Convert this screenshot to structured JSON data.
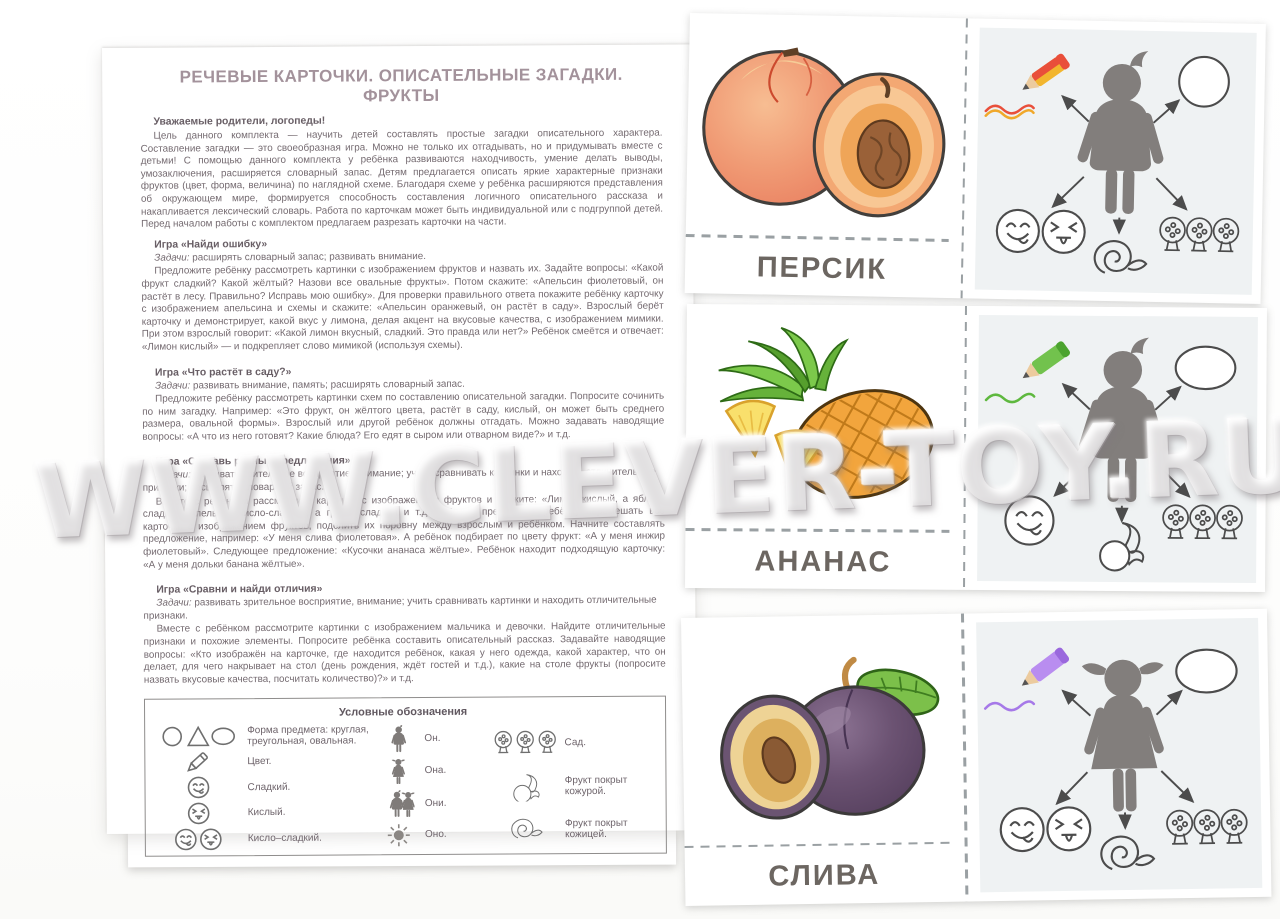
{
  "page": {
    "watermark": "WWW.CLEVER-TOY.RU"
  },
  "colors": {
    "title": "#a3929b",
    "body_text": "#746a70",
    "heading": "#685e65",
    "card_label": "#6c6661",
    "silhouette": "#827e7c",
    "outline": "#4c4c4c",
    "schema_panel": "#eff2f3",
    "dash": "#9aa0a3"
  },
  "sheet": {
    "title": "РЕЧЕВЫЕ КАРТОЧКИ. ОПИСАТЕЛЬНЫЕ ЗАГАДКИ. ФРУКТЫ",
    "greeting": "Уважаемые родители, логопеды!",
    "intro": "Цель данного комплекта — научить детей составлять простые загадки описательного характера. Составление загадки — это своеобразная игра. Можно не только их отгадывать, но и придумывать вместе с детьми! С помощью данного комплекта у ребёнка развиваются находчивость, умение делать выводы, умозаключения, расширяется словарный запас. Детям предлагается описать яркие характерные признаки фруктов (цвет, форма, величина) по наглядной схеме. Благодаря схеме у ребёнка расширяются представления об окружающем мире, формируется способность составления логичного описательного рассказа и накапливается лексический словарь. Работа по карточкам может быть индивидуальной или с подгруппой детей. Перед началом работы с комплектом предлагаем разрезать карточки на части.",
    "games": [
      {
        "heading": "Игра «Найди ошибку»",
        "tasks_label": "Задачи:",
        "tasks_text": " расширять словарный запас; развивать внимание.",
        "body": "Предложите ребёнку рассмотреть картинки с изображением фруктов и назвать их. Задайте вопросы: «Какой фрукт сладкий? Какой жёлтый? Назови все овальные фрукты». Потом скажите: «Апельсин фиолетовый, он растёт в лесу. Правильно? Исправь мою ошибку». Для проверки правильного ответа покажите ребёнку карточку с изображением апельсина и схемы и скажите: «Апельсин оранжевый, он растёт в саду». Взрослый берёт карточку и демонстрирует, какой вкус у лимона, делая акцент на вкусовые качества, с изображением мимики. При этом взрослый говорит: «Какой лимон вкусный, сладкий. Это правда или нет?» Ребёнок смеётся и отвечает: «Лимон кислый» — и подкрепляет слово мимикой (используя схемы)."
      },
      {
        "heading": "Игра «Что растёт в саду?»",
        "tasks_label": "Задачи:",
        "tasks_text": " развивать внимание, память; расширять словарный запас.",
        "body": "Предложите ребёнку рассмотреть картинки схем по составлению описательной загадки. Попросите сочинить по ним загадку. Например: «Это фрукт, он жёлтого цвета, растёт в саду, кислый, он может быть среднего размера, овальной формы». Взрослый или другой ребёнок должны отгадать. Можно задавать наводящие вопросы: «А что из него готовят? Какие блюда? Его едят в сыром или отварном виде?» и т.д."
      },
      {
        "heading": "Игра «Составь разные предложения»",
        "tasks_label": "Задачи:",
        "tasks_text": " развивать зрительное восприятие, внимание; учить сравнивать картинки и находить отличительные признаки; расширять словарный запас.",
        "body": "Вместе с ребёнком рассмотрите картинки с изображением фруктов и скажите: «Лимон кислый, а яблоко сладкое. Апельсин кисло-сладкий, а груша сладкая и т.д.». Можно предложить ребёнку перемешать все карточки с изображением фруктов, поделить их поровну между взрослым и ребёнком. Начните составлять предложение, например: «У меня слива фиолетовая». А ребёнок подбирает по цвету фрукт: «А у меня инжир фиолетовый». Следующее предложение: «Кусочки ананаса жёлтые». Ребёнок находит подходящую карточку: «А у меня дольки банана жёлтые»."
      },
      {
        "heading": "Игра «Сравни и найди отличия»",
        "tasks_label": "Задачи:",
        "tasks_text": " развивать зрительное восприятие, внимание; учить сравнивать картинки и находить отличительные признаки.",
        "body": "Вместе с ребёнком рассмотрите картинки с изображением мальчика и девочки. Найдите отличительные признаки и похожие элементы. Попросите ребёнка составить описательный рассказ. Задавайте наводящие вопросы: «Кто изображён на карточке, где находится ребёнок, какая у него одежда, какой характер, что он делает, для чего накрывает на стол (день рождения, ждёт гостей и т.д.), какие на столе фрукты (попросите назвать вкусовые качества, посчитать количество)?» и т.д."
      }
    ],
    "legend": {
      "title": "Условные обозначения",
      "col1": [
        {
          "icon": "shapes",
          "label": "Форма предмета: круглая, треугольная, овальная."
        },
        {
          "icon": "pencil",
          "label": "Цвет."
        },
        {
          "icon": "sweet-face",
          "label": "Сладкий."
        },
        {
          "icon": "sour-face",
          "label": "Кислый."
        },
        {
          "icon": "sweet-sour",
          "label": "Кисло–сладкий."
        }
      ],
      "col2": [
        {
          "icon": "boy",
          "label": "Он."
        },
        {
          "icon": "girl",
          "label": "Она."
        },
        {
          "icon": "boy-girl",
          "label": "Они."
        },
        {
          "icon": "sun",
          "label": "Оно."
        }
      ],
      "col3": [
        {
          "icon": "trees",
          "label": "Сад."
        },
        {
          "icon": "peel",
          "label": "Фрукт покрыт кожурой."
        },
        {
          "icon": "skin",
          "label": "Фрукт покрыт кожицей."
        }
      ]
    }
  },
  "cards": [
    {
      "name": "ПЕРСИК",
      "fruit": "peach",
      "schema": {
        "pencil_icon": "pencil-icon",
        "pencil_colors": [
          "#f2b62e",
          "#e94f3a"
        ],
        "pencil_cap": "#e94f3a",
        "squiggle_colors": [
          "#e94f3a",
          "#f0a82a"
        ],
        "shape_icon": "circle-shape-icon",
        "person_icon": "boy-silhouette-icon",
        "taste_icons": [
          "sweet-face-icon",
          "sour-face-icon"
        ],
        "cover_icon": "fruit-skin-icon",
        "garden_icon": "garden-trees-icon"
      }
    },
    {
      "name": "АНАНАС",
      "fruit": "pineapple",
      "schema": {
        "pencil_icon": "pencil-icon",
        "pencil_colors": [
          "#72c24d"
        ],
        "pencil_cap": "#4ba32e",
        "squiggle_colors": [
          "#5eb83e"
        ],
        "shape_icon": "oval-shape-icon",
        "person_icon": "boy-silhouette-icon",
        "taste_icons": [
          "sweet-face-icon"
        ],
        "cover_icon": "fruit-peel-icon",
        "garden_icon": "garden-trees-icon"
      }
    },
    {
      "name": "СЛИВА",
      "fruit": "plum",
      "schema": {
        "pencil_icon": "pencil-icon",
        "pencil_colors": [
          "#b98df0"
        ],
        "pencil_cap": "#9a68dd",
        "squiggle_colors": [
          "#a679e8"
        ],
        "shape_icon": "oval-shape-icon",
        "person_icon": "girl-silhouette-icon",
        "taste_icons": [
          "sweet-face-icon",
          "sour-face-icon"
        ],
        "cover_icon": "fruit-skin-icon",
        "garden_icon": "garden-trees-icon"
      }
    }
  ]
}
